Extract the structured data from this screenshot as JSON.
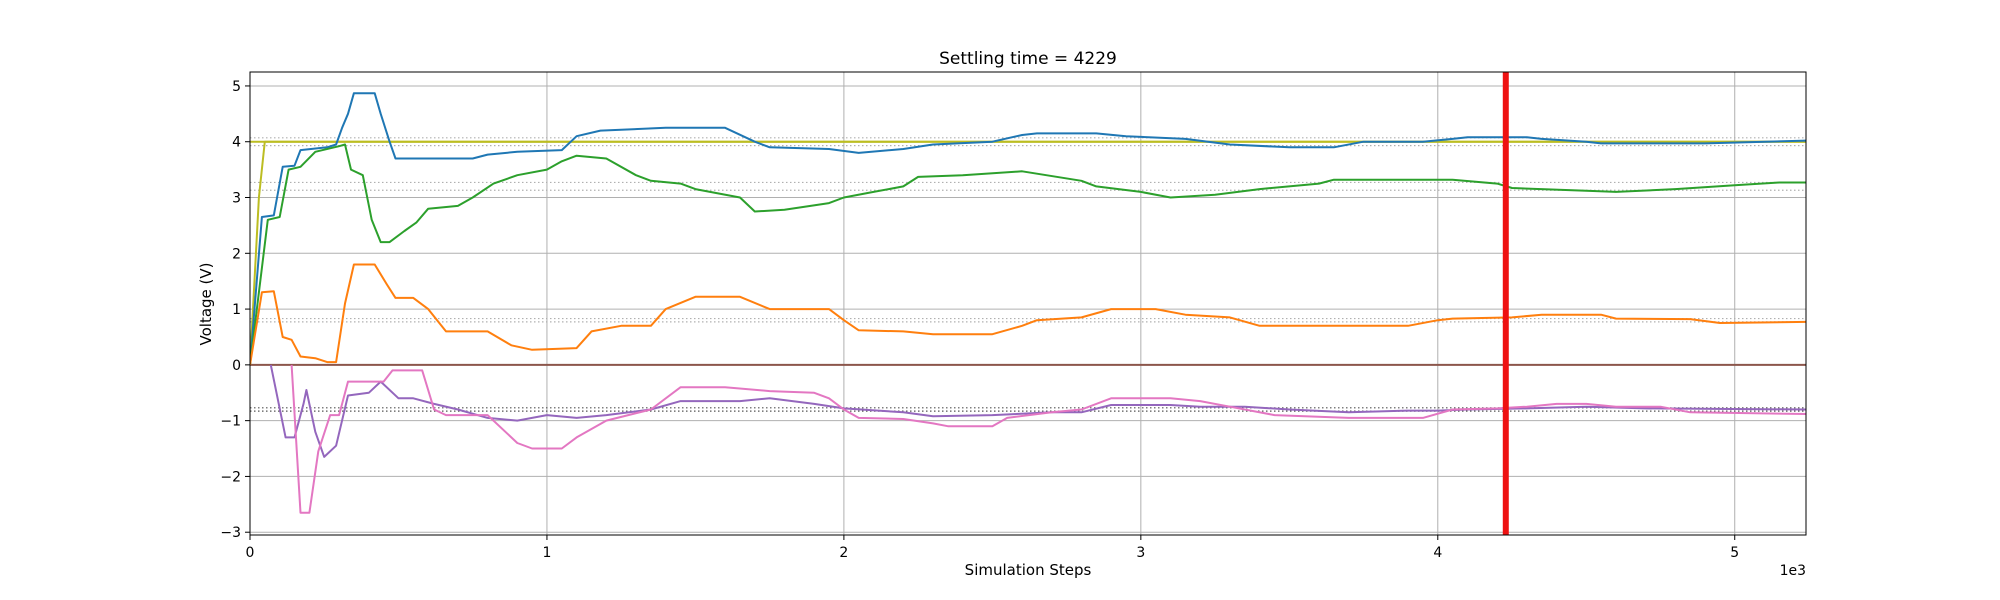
{
  "chart_data": {
    "type": "line",
    "title": "Settling time = 4229",
    "xlabel": "Simulation Steps",
    "ylabel": "Voltage (V)",
    "x_scale_label": "1e3",
    "xlim": [
      0,
      5.24
    ],
    "ylim": [
      -3.05,
      5.25
    ],
    "x_ticks": [
      0,
      1,
      2,
      3,
      4,
      5
    ],
    "x_tick_labels": [
      "0",
      "1",
      "2",
      "3",
      "4",
      "5"
    ],
    "y_ticks": [
      -3,
      -2,
      -1,
      0,
      1,
      2,
      3,
      4,
      5
    ],
    "y_tick_labels": [
      "−3",
      "−2",
      "−1",
      "0",
      "1",
      "2",
      "3",
      "4",
      "5"
    ],
    "grid": true,
    "settling_marker": {
      "x": 4.229,
      "color": "#ee1111"
    },
    "reference_lines": [
      {
        "y": 4.07,
        "color": "#b0b0b0",
        "style": "dotted"
      },
      {
        "y": 4.0,
        "color": "#bcbd22",
        "style": "solid"
      },
      {
        "y": 3.93,
        "color": "#b0b0b0",
        "style": "dotted"
      },
      {
        "y": 3.27,
        "color": "#b0b0b0",
        "style": "dotted"
      },
      {
        "y": 3.13,
        "color": "#b0b0b0",
        "style": "dotted"
      },
      {
        "y": 0.83,
        "color": "#b0b0b0",
        "style": "dotted"
      },
      {
        "y": 0.77,
        "color": "#b0b0b0",
        "style": "dotted"
      },
      {
        "y": 0.0,
        "color": "#8c564b",
        "style": "solid"
      },
      {
        "y": -0.77,
        "color": "#555555",
        "style": "dotted"
      },
      {
        "y": -0.83,
        "color": "#555555",
        "style": "dotted"
      }
    ],
    "series": [
      {
        "color": "#bcbd22",
        "points": [
          [
            0,
            0
          ],
          [
            0.03,
            3.0
          ],
          [
            0.05,
            4.0
          ],
          [
            5.24,
            4.0
          ]
        ]
      },
      {
        "color": "#1f77b4",
        "points": [
          [
            0,
            0
          ],
          [
            0.04,
            2.65
          ],
          [
            0.08,
            2.68
          ],
          [
            0.11,
            3.55
          ],
          [
            0.15,
            3.57
          ],
          [
            0.17,
            3.85
          ],
          [
            0.26,
            3.9
          ],
          [
            0.29,
            3.95
          ],
          [
            0.31,
            4.25
          ],
          [
            0.33,
            4.5
          ],
          [
            0.35,
            4.87
          ],
          [
            0.42,
            4.87
          ],
          [
            0.44,
            4.5
          ],
          [
            0.47,
            4.0
          ],
          [
            0.49,
            3.7
          ],
          [
            0.6,
            3.7
          ],
          [
            0.75,
            3.7
          ],
          [
            0.8,
            3.77
          ],
          [
            0.9,
            3.82
          ],
          [
            1.05,
            3.85
          ],
          [
            1.1,
            4.1
          ],
          [
            1.18,
            4.2
          ],
          [
            1.4,
            4.25
          ],
          [
            1.6,
            4.25
          ],
          [
            1.7,
            4.0
          ],
          [
            1.75,
            3.9
          ],
          [
            1.95,
            3.87
          ],
          [
            2.05,
            3.8
          ],
          [
            2.2,
            3.87
          ],
          [
            2.3,
            3.95
          ],
          [
            2.5,
            4.0
          ],
          [
            2.6,
            4.12
          ],
          [
            2.65,
            4.15
          ],
          [
            2.85,
            4.15
          ],
          [
            2.95,
            4.1
          ],
          [
            3.15,
            4.05
          ],
          [
            3.3,
            3.95
          ],
          [
            3.5,
            3.9
          ],
          [
            3.65,
            3.9
          ],
          [
            3.75,
            4.0
          ],
          [
            3.95,
            4.0
          ],
          [
            4.05,
            4.05
          ],
          [
            4.1,
            4.08
          ],
          [
            4.3,
            4.08
          ],
          [
            4.35,
            4.05
          ],
          [
            4.5,
            4.0
          ],
          [
            4.55,
            3.97
          ],
          [
            4.9,
            3.97
          ],
          [
            5.24,
            4.02
          ]
        ]
      },
      {
        "color": "#2ca02c",
        "points": [
          [
            0,
            0
          ],
          [
            0.06,
            2.6
          ],
          [
            0.1,
            2.65
          ],
          [
            0.13,
            3.5
          ],
          [
            0.17,
            3.55
          ],
          [
            0.22,
            3.82
          ],
          [
            0.3,
            3.92
          ],
          [
            0.32,
            3.95
          ],
          [
            0.34,
            3.5
          ],
          [
            0.38,
            3.4
          ],
          [
            0.41,
            2.6
          ],
          [
            0.44,
            2.2
          ],
          [
            0.47,
            2.2
          ],
          [
            0.52,
            2.4
          ],
          [
            0.56,
            2.55
          ],
          [
            0.6,
            2.8
          ],
          [
            0.7,
            2.85
          ],
          [
            0.75,
            3.0
          ],
          [
            0.82,
            3.25
          ],
          [
            0.9,
            3.4
          ],
          [
            1.0,
            3.5
          ],
          [
            1.05,
            3.65
          ],
          [
            1.1,
            3.75
          ],
          [
            1.2,
            3.7
          ],
          [
            1.3,
            3.4
          ],
          [
            1.35,
            3.3
          ],
          [
            1.45,
            3.25
          ],
          [
            1.5,
            3.15
          ],
          [
            1.65,
            3.0
          ],
          [
            1.7,
            2.75
          ],
          [
            1.8,
            2.78
          ],
          [
            1.95,
            2.9
          ],
          [
            2.0,
            3.0
          ],
          [
            2.1,
            3.1
          ],
          [
            2.2,
            3.2
          ],
          [
            2.25,
            3.37
          ],
          [
            2.4,
            3.4
          ],
          [
            2.6,
            3.47
          ],
          [
            2.8,
            3.3
          ],
          [
            2.85,
            3.2
          ],
          [
            3.0,
            3.1
          ],
          [
            3.1,
            3.0
          ],
          [
            3.25,
            3.05
          ],
          [
            3.4,
            3.15
          ],
          [
            3.6,
            3.25
          ],
          [
            3.65,
            3.32
          ],
          [
            4.05,
            3.32
          ],
          [
            4.2,
            3.25
          ],
          [
            4.25,
            3.17
          ],
          [
            4.5,
            3.12
          ],
          [
            4.6,
            3.1
          ],
          [
            4.8,
            3.15
          ],
          [
            5.0,
            3.22
          ],
          [
            5.15,
            3.27
          ],
          [
            5.24,
            3.27
          ]
        ]
      },
      {
        "color": "#ff7f0e",
        "points": [
          [
            0,
            0
          ],
          [
            0.04,
            1.3
          ],
          [
            0.08,
            1.32
          ],
          [
            0.11,
            0.5
          ],
          [
            0.14,
            0.45
          ],
          [
            0.17,
            0.15
          ],
          [
            0.22,
            0.12
          ],
          [
            0.26,
            0.05
          ],
          [
            0.29,
            0.05
          ],
          [
            0.32,
            1.1
          ],
          [
            0.35,
            1.8
          ],
          [
            0.42,
            1.8
          ],
          [
            0.46,
            1.45
          ],
          [
            0.49,
            1.2
          ],
          [
            0.55,
            1.2
          ],
          [
            0.6,
            1.0
          ],
          [
            0.66,
            0.6
          ],
          [
            0.8,
            0.6
          ],
          [
            0.88,
            0.35
          ],
          [
            0.95,
            0.27
          ],
          [
            1.1,
            0.3
          ],
          [
            1.15,
            0.6
          ],
          [
            1.25,
            0.7
          ],
          [
            1.35,
            0.7
          ],
          [
            1.4,
            1.0
          ],
          [
            1.5,
            1.22
          ],
          [
            1.65,
            1.22
          ],
          [
            1.75,
            1.0
          ],
          [
            1.95,
            1.0
          ],
          [
            2.0,
            0.8
          ],
          [
            2.05,
            0.62
          ],
          [
            2.2,
            0.6
          ],
          [
            2.3,
            0.55
          ],
          [
            2.5,
            0.55
          ],
          [
            2.6,
            0.7
          ],
          [
            2.65,
            0.8
          ],
          [
            2.8,
            0.85
          ],
          [
            2.9,
            1.0
          ],
          [
            3.05,
            1.0
          ],
          [
            3.15,
            0.9
          ],
          [
            3.3,
            0.85
          ],
          [
            3.4,
            0.7
          ],
          [
            3.9,
            0.7
          ],
          [
            4.0,
            0.8
          ],
          [
            4.05,
            0.83
          ],
          [
            4.25,
            0.85
          ],
          [
            4.35,
            0.9
          ],
          [
            4.55,
            0.9
          ],
          [
            4.6,
            0.83
          ],
          [
            4.85,
            0.82
          ],
          [
            4.95,
            0.75
          ],
          [
            5.24,
            0.77
          ]
        ]
      },
      {
        "color": "#9467bd",
        "points": [
          [
            0.07,
            0
          ],
          [
            0.12,
            -1.3
          ],
          [
            0.15,
            -1.3
          ],
          [
            0.18,
            -0.7
          ],
          [
            0.19,
            -0.45
          ],
          [
            0.22,
            -1.2
          ],
          [
            0.25,
            -1.65
          ],
          [
            0.29,
            -1.45
          ],
          [
            0.33,
            -0.55
          ],
          [
            0.4,
            -0.5
          ],
          [
            0.44,
            -0.3
          ],
          [
            0.5,
            -0.6
          ],
          [
            0.55,
            -0.6
          ],
          [
            0.62,
            -0.7
          ],
          [
            0.7,
            -0.8
          ],
          [
            0.8,
            -0.95
          ],
          [
            0.9,
            -1.0
          ],
          [
            1.0,
            -0.9
          ],
          [
            1.1,
            -0.95
          ],
          [
            1.2,
            -0.9
          ],
          [
            1.35,
            -0.8
          ],
          [
            1.45,
            -0.65
          ],
          [
            1.65,
            -0.65
          ],
          [
            1.75,
            -0.6
          ],
          [
            1.9,
            -0.7
          ],
          [
            2.0,
            -0.78
          ],
          [
            2.2,
            -0.85
          ],
          [
            2.3,
            -0.92
          ],
          [
            2.5,
            -0.9
          ],
          [
            2.7,
            -0.85
          ],
          [
            2.8,
            -0.85
          ],
          [
            2.9,
            -0.72
          ],
          [
            3.1,
            -0.72
          ],
          [
            3.2,
            -0.75
          ],
          [
            3.35,
            -0.75
          ],
          [
            3.5,
            -0.8
          ],
          [
            3.7,
            -0.85
          ],
          [
            3.9,
            -0.82
          ],
          [
            4.0,
            -0.82
          ],
          [
            4.1,
            -0.8
          ],
          [
            4.3,
            -0.78
          ],
          [
            4.5,
            -0.75
          ],
          [
            4.7,
            -0.78
          ],
          [
            5.24,
            -0.8
          ]
        ]
      },
      {
        "color": "#e377c2",
        "points": [
          [
            0.14,
            0
          ],
          [
            0.17,
            -2.65
          ],
          [
            0.2,
            -2.65
          ],
          [
            0.23,
            -1.55
          ],
          [
            0.27,
            -0.9
          ],
          [
            0.3,
            -0.9
          ],
          [
            0.33,
            -0.3
          ],
          [
            0.45,
            -0.3
          ],
          [
            0.48,
            -0.1
          ],
          [
            0.58,
            -0.1
          ],
          [
            0.62,
            -0.8
          ],
          [
            0.66,
            -0.9
          ],
          [
            0.8,
            -0.9
          ],
          [
            0.86,
            -1.2
          ],
          [
            0.9,
            -1.4
          ],
          [
            0.95,
            -1.5
          ],
          [
            1.05,
            -1.5
          ],
          [
            1.1,
            -1.3
          ],
          [
            1.2,
            -1.0
          ],
          [
            1.35,
            -0.8
          ],
          [
            1.45,
            -0.4
          ],
          [
            1.6,
            -0.4
          ],
          [
            1.75,
            -0.47
          ],
          [
            1.9,
            -0.5
          ],
          [
            1.95,
            -0.6
          ],
          [
            2.0,
            -0.8
          ],
          [
            2.05,
            -0.95
          ],
          [
            2.2,
            -0.97
          ],
          [
            2.3,
            -1.05
          ],
          [
            2.35,
            -1.1
          ],
          [
            2.5,
            -1.1
          ],
          [
            2.55,
            -0.95
          ],
          [
            2.7,
            -0.85
          ],
          [
            2.8,
            -0.8
          ],
          [
            2.9,
            -0.6
          ],
          [
            3.1,
            -0.6
          ],
          [
            3.2,
            -0.65
          ],
          [
            3.3,
            -0.75
          ],
          [
            3.45,
            -0.9
          ],
          [
            3.7,
            -0.95
          ],
          [
            3.95,
            -0.95
          ],
          [
            4.05,
            -0.8
          ],
          [
            4.2,
            -0.78
          ],
          [
            4.3,
            -0.75
          ],
          [
            4.4,
            -0.7
          ],
          [
            4.5,
            -0.7
          ],
          [
            4.6,
            -0.75
          ],
          [
            4.75,
            -0.75
          ],
          [
            4.85,
            -0.85
          ],
          [
            5.24,
            -0.88
          ]
        ]
      }
    ]
  }
}
